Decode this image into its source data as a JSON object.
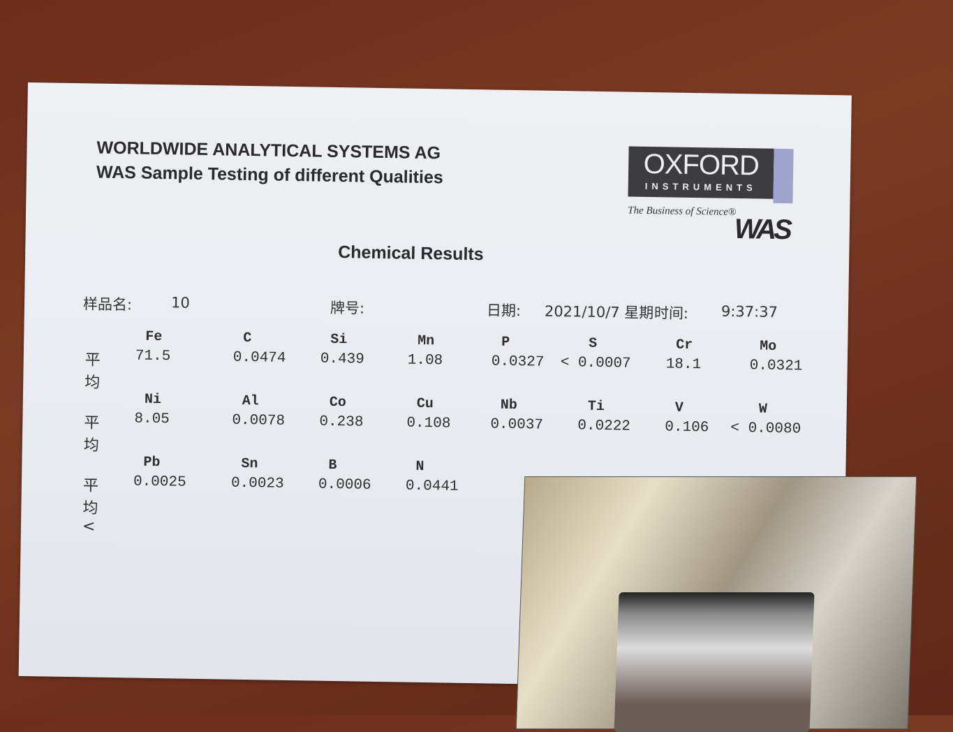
{
  "header": {
    "company": "WORLDWIDE ANALYTICAL SYSTEMS AG",
    "subtitle": "WAS Sample Testing of different Qualities",
    "title": "Chemical Results"
  },
  "logo": {
    "brand": "OXFORD",
    "sub": "INSTRUMENTS",
    "tagline": "The Business of Science®",
    "mark": "WAS"
  },
  "meta": {
    "sample_label": "样品名:",
    "sample_value": "10",
    "grade_label": "牌号:",
    "date_label": "日期:",
    "date_value": "2021/10/7 星期",
    "time_label": "时间:",
    "time_value": "9:37:37"
  },
  "rows": [
    {
      "prefix": "平均",
      "cells": [
        {
          "el": "Fe",
          "val": "71.5"
        },
        {
          "el": "C",
          "val": "0.0474"
        },
        {
          "el": "Si",
          "val": "0.439"
        },
        {
          "el": "Mn",
          "val": "1.08"
        },
        {
          "el": "P",
          "val": "0.0327"
        },
        {
          "el": "S",
          "val": "< 0.0007"
        },
        {
          "el": "Cr",
          "val": "18.1"
        },
        {
          "el": "Mo",
          "val": "0.0321"
        }
      ]
    },
    {
      "prefix": "平均",
      "cells": [
        {
          "el": "Ni",
          "val": "8.05"
        },
        {
          "el": "Al",
          "val": "0.0078"
        },
        {
          "el": "Co",
          "val": "0.238"
        },
        {
          "el": "Cu",
          "val": "0.108"
        },
        {
          "el": "Nb",
          "val": "0.0037"
        },
        {
          "el": "Ti",
          "val": "0.0222"
        },
        {
          "el": "V",
          "val": "0.106"
        },
        {
          "el": "W",
          "val": "< 0.0080"
        }
      ]
    },
    {
      "prefix": "平均<",
      "cells": [
        {
          "el": "Pb",
          "val": "0.0025"
        },
        {
          "el": "Sn",
          "val": "0.0023"
        },
        {
          "el": "B",
          "val": "0.0006"
        },
        {
          "el": "N",
          "val": "0.0441"
        }
      ]
    }
  ]
}
